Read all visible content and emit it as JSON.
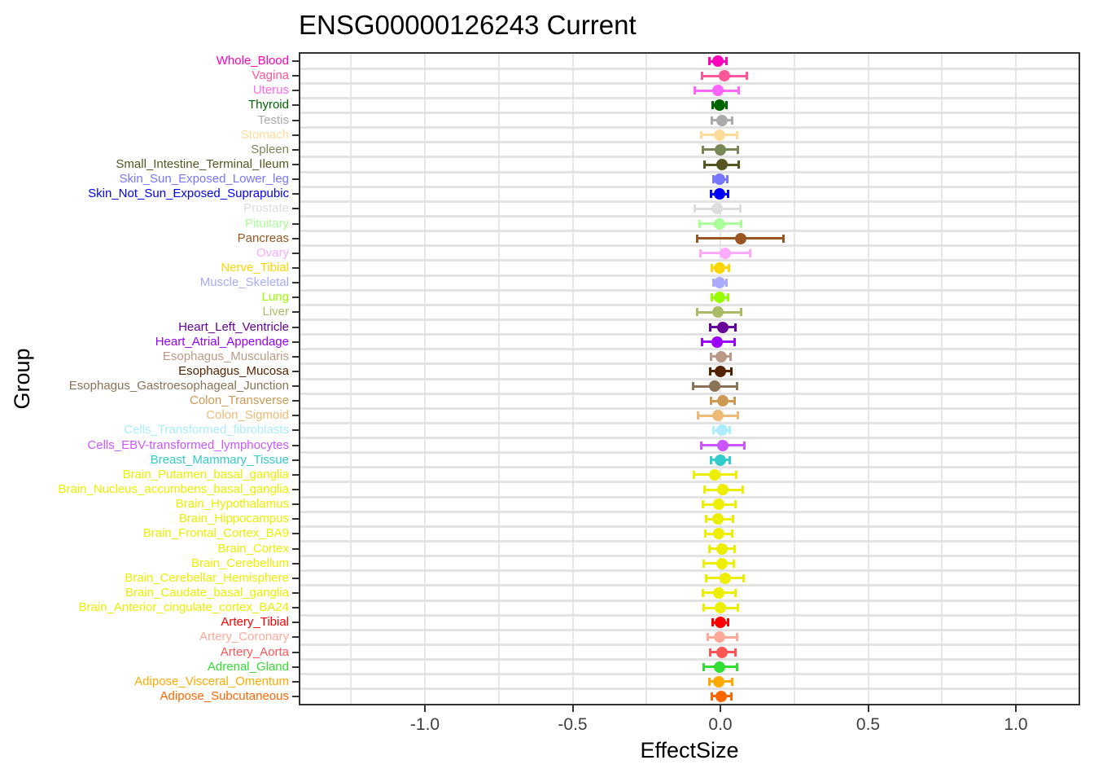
{
  "chart_data": {
    "type": "scatter",
    "subtype": "forest-plot-horizontal-error-bars",
    "title": "ENSG00000126243 Current",
    "xlabel": "EffectSize",
    "ylabel": "Group",
    "xlim": [
      -1.42,
      1.21
    ],
    "x_ticks": [
      -1.0,
      -0.5,
      0.0,
      0.5,
      1.0
    ],
    "x_tick_labels": [
      "-1.0",
      "-0.5",
      "0.0",
      "0.5",
      "1.0"
    ],
    "grid": "on",
    "legend": "none",
    "colors": {
      "panel_border": "#333333",
      "grid_horizontal": "#E3E3E3",
      "grid_vertical": "#E7E7E7",
      "axis_tick": "#333333",
      "tick_label_text": "#404040",
      "title_text": "#000000"
    },
    "rows": [
      {
        "label": "Whole_Blood",
        "color": "#FF00BB",
        "effect": -0.007,
        "ci_low": -0.039,
        "ci_high": 0.023
      },
      {
        "label": "Vagina",
        "color": "#FF5599",
        "effect": 0.014,
        "ci_low": -0.064,
        "ci_high": 0.09
      },
      {
        "label": "Uterus",
        "color": "#FF66FF",
        "effect": -0.009,
        "ci_low": -0.087,
        "ci_high": 0.064
      },
      {
        "label": "Thyroid",
        "color": "#006600",
        "effect": -0.002,
        "ci_low": -0.028,
        "ci_high": 0.023
      },
      {
        "label": "Testis",
        "color": "#AAAAAA",
        "effect": 0.005,
        "ci_low": -0.03,
        "ci_high": 0.041
      },
      {
        "label": "Stomach",
        "color": "#FFDD99",
        "effect": -0.004,
        "ci_low": -0.067,
        "ci_high": 0.057
      },
      {
        "label": "Spleen",
        "color": "#778855",
        "effect": 0.0,
        "ci_low": -0.06,
        "ci_high": 0.06
      },
      {
        "label": "Small_Intestine_Terminal_Ileum",
        "color": "#555522",
        "effect": 0.005,
        "ci_low": -0.055,
        "ci_high": 0.064
      },
      {
        "label": "Skin_Sun_Exposed_Lower_leg",
        "color": "#7777FF",
        "effect": -0.002,
        "ci_low": -0.026,
        "ci_high": 0.025
      },
      {
        "label": "Skin_Not_Sun_Exposed_Suprapubic",
        "color": "#0000FF",
        "effect": -0.004,
        "ci_low": -0.034,
        "ci_high": 0.028
      },
      {
        "label": "Prostate",
        "color": "#DDDDDD",
        "effect": -0.012,
        "ci_low": -0.089,
        "ci_high": 0.069
      },
      {
        "label": "Pituitary",
        "color": "#AAFF99",
        "effect": -0.002,
        "ci_low": -0.072,
        "ci_high": 0.071
      },
      {
        "label": "Pancreas",
        "color": "#995522",
        "effect": 0.069,
        "ci_low": -0.08,
        "ci_high": 0.214
      },
      {
        "label": "Ovary",
        "color": "#FFAAFF",
        "effect": 0.017,
        "ci_low": -0.069,
        "ci_high": 0.101
      },
      {
        "label": "Nerve_Tibial",
        "color": "#FFD700",
        "effect": -0.002,
        "ci_low": -0.029,
        "ci_high": 0.029
      },
      {
        "label": "Muscle_Skeletal",
        "color": "#AAAAFF",
        "effect": -0.002,
        "ci_low": -0.025,
        "ci_high": 0.023
      },
      {
        "label": "Lung",
        "color": "#99FF00",
        "effect": -0.002,
        "ci_low": -0.029,
        "ci_high": 0.028
      },
      {
        "label": "Liver",
        "color": "#AABB66",
        "effect": -0.007,
        "ci_low": -0.081,
        "ci_high": 0.072
      },
      {
        "label": "Heart_Left_Ventricle",
        "color": "#660099",
        "effect": 0.009,
        "ci_low": -0.035,
        "ci_high": 0.052
      },
      {
        "label": "Heart_Atrial_Appendage",
        "color": "#9900FF",
        "effect": -0.011,
        "ci_low": -0.064,
        "ci_high": 0.049
      },
      {
        "label": "Esophagus_Muscularis",
        "color": "#BB9988",
        "effect": 0.002,
        "ci_low": -0.034,
        "ci_high": 0.037
      },
      {
        "label": "Esophagus_Mucosa",
        "color": "#552200",
        "effect": 0.0,
        "ci_low": -0.037,
        "ci_high": 0.039
      },
      {
        "label": "Esophagus_Gastroesophageal_Junction",
        "color": "#8B7355",
        "effect": -0.018,
        "ci_low": -0.094,
        "ci_high": 0.057
      },
      {
        "label": "Colon_Transverse",
        "color": "#CC9955",
        "effect": 0.007,
        "ci_low": -0.034,
        "ci_high": 0.049
      },
      {
        "label": "Colon_Sigmoid",
        "color": "#EEBB77",
        "effect": -0.009,
        "ci_low": -0.076,
        "ci_high": 0.06
      },
      {
        "label": "Cells_Transformed_fibroblasts",
        "color": "#AAEEFF",
        "effect": 0.005,
        "ci_low": -0.025,
        "ci_high": 0.034
      },
      {
        "label": "Cells_EBV-transformed_lymphocytes",
        "color": "#CC55FF",
        "effect": 0.009,
        "ci_low": -0.067,
        "ci_high": 0.084
      },
      {
        "label": "Breast_Mammary_Tissue",
        "color": "#33CCCC",
        "effect": 0.0,
        "ci_low": -0.034,
        "ci_high": 0.034
      },
      {
        "label": "Brain_Putamen_basal_ganglia",
        "color": "#EEEE00",
        "effect": -0.018,
        "ci_low": -0.092,
        "ci_high": 0.055
      },
      {
        "label": "Brain_Nucleus_accumbens_basal_ganglia",
        "color": "#EEEE00",
        "effect": 0.009,
        "ci_low": -0.055,
        "ci_high": 0.076
      },
      {
        "label": "Brain_Hypothalamus",
        "color": "#EEEE00",
        "effect": -0.005,
        "ci_low": -0.06,
        "ci_high": 0.053
      },
      {
        "label": "Brain_Hippocampus",
        "color": "#EEEE00",
        "effect": -0.007,
        "ci_low": -0.05,
        "ci_high": 0.044
      },
      {
        "label": "Brain_Frontal_Cortex_BA9",
        "color": "#EEEE00",
        "effect": -0.006,
        "ci_low": -0.052,
        "ci_high": 0.041
      },
      {
        "label": "Brain_Cortex",
        "color": "#EEEE00",
        "effect": 0.005,
        "ci_low": -0.039,
        "ci_high": 0.049
      },
      {
        "label": "Brain_Cerebellum",
        "color": "#EEEE00",
        "effect": 0.005,
        "ci_low": -0.057,
        "ci_high": 0.048
      },
      {
        "label": "Brain_Cerebellar_Hemisphere",
        "color": "#EEEE00",
        "effect": 0.016,
        "ci_low": -0.049,
        "ci_high": 0.081
      },
      {
        "label": "Brain_Caudate_basal_ganglia",
        "color": "#EEEE00",
        "effect": -0.006,
        "ci_low": -0.06,
        "ci_high": 0.053
      },
      {
        "label": "Brain_Anterior_cingulate_cortex_BA24",
        "color": "#EEEE00",
        "effect": 0.0,
        "ci_low": -0.058,
        "ci_high": 0.06
      },
      {
        "label": "Artery_Tibial",
        "color": "#FF0000",
        "effect": 0.0,
        "ci_low": -0.028,
        "ci_high": 0.028
      },
      {
        "label": "Artery_Coronary",
        "color": "#FFAA99",
        "effect": -0.002,
        "ci_low": -0.044,
        "ci_high": 0.057
      },
      {
        "label": "Artery_Aorta",
        "color": "#FF5555",
        "effect": 0.005,
        "ci_low": -0.035,
        "ci_high": 0.053
      },
      {
        "label": "Adrenal_Gland",
        "color": "#33DD33",
        "effect": -0.003,
        "ci_low": -0.058,
        "ci_high": 0.057
      },
      {
        "label": "Adipose_Visceral_Omentum",
        "color": "#FFAA00",
        "effect": -0.006,
        "ci_low": -0.039,
        "ci_high": 0.041
      },
      {
        "label": "Adipose_Subcutaneous",
        "color": "#FF6600",
        "effect": 0.002,
        "ci_low": -0.03,
        "ci_high": 0.039
      }
    ]
  }
}
